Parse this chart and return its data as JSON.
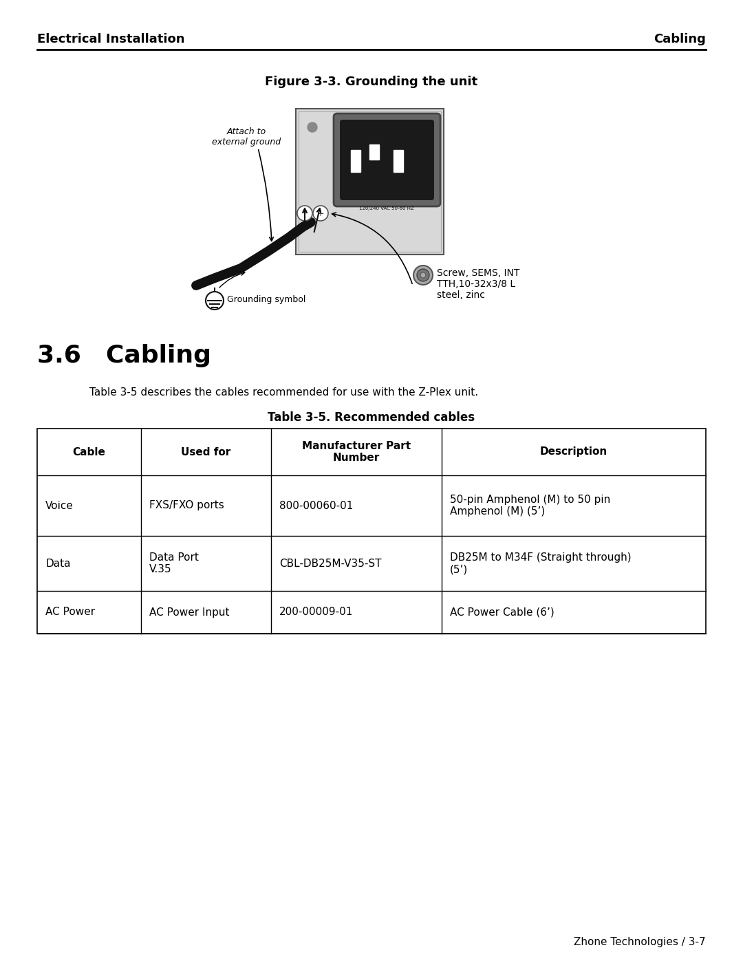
{
  "header_left": "Electrical Installation",
  "header_right": "Cabling",
  "figure_title": "Figure 3-3. Grounding the unit",
  "section_title": "3.6 Cabling",
  "intro_text": "Table 3-5 describes the cables recommended for use with the Z-Plex unit.",
  "table_title": "Table 3-5. Recommended cables",
  "table_headers": [
    "Cable",
    "Used for",
    "Manufacturer Part\nNumber",
    "Description"
  ],
  "table_rows": [
    [
      "Voice",
      "FXS/FXO ports",
      "800-00060-01",
      "50-pin Amphenol (M) to 50 pin\nAmphenol (M) (5’)"
    ],
    [
      "Data",
      "Data Port\nV.35",
      "CBL-DB25M-V35-ST",
      "DB25M to M34F (Straight through)\n(5’)"
    ],
    [
      "AC Power",
      "AC Power Input",
      "200-00009-01",
      "AC Power Cable (6’)"
    ]
  ],
  "footer_text": "Zhone Technologies / 3-7",
  "attach_label": "Attach to\nexternal ground",
  "ground_label": "Grounding symbol",
  "screw_label": "Screw, SEMS, INT\nTTH,10-32x3/8 L\nsteel, zinc",
  "vac_label": "120/240 VAC 50-60 HZ",
  "bg_color": "#ffffff"
}
